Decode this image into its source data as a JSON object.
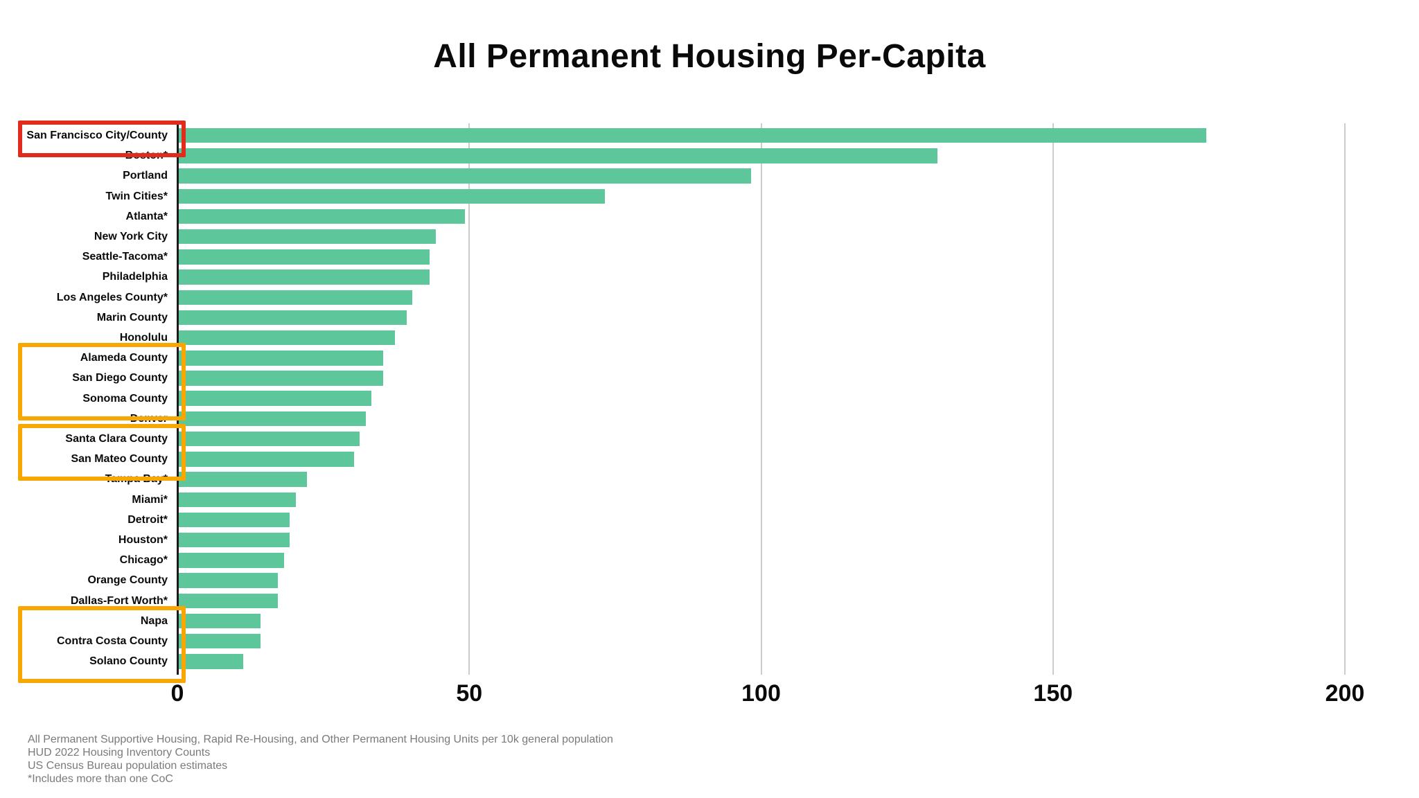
{
  "title": "All Permanent Housing Per-Capita",
  "chart_data": {
    "type": "bar",
    "orientation": "horizontal",
    "title": "All Permanent Housing Per-Capita",
    "xlabel": "",
    "ylabel": "",
    "xlim": [
      0,
      200
    ],
    "x_ticks": [
      0,
      50,
      100,
      150,
      200
    ],
    "grid": true,
    "bar_color": "#5EC69B",
    "gridline_color": "#CCCCCC",
    "axis_color": "#1A1A1A",
    "categories": [
      "San Francisco City/County",
      "Boston*",
      "Portland",
      "Twin Cities*",
      "Atlanta*",
      "New York City",
      "Seattle-Tacoma*",
      "Philadelphia",
      "Los Angeles County*",
      "Marin County",
      "Honolulu",
      "Alameda County",
      "San Diego County",
      "Sonoma County",
      "Denver",
      "Santa Clara County",
      "San Mateo County",
      "Tampa Bay*",
      "Miami*",
      "Detroit*",
      "Houston*",
      "Chicago*",
      "Orange County",
      "Dallas-Fort Worth*",
      "Napa",
      "Contra Costa County",
      "Solano County"
    ],
    "values": [
      176,
      130,
      98,
      73,
      49,
      44,
      43,
      43,
      40,
      39,
      37,
      35,
      35,
      33,
      32,
      31,
      30,
      22,
      20,
      19,
      19,
      18,
      17,
      17,
      14,
      14,
      11
    ],
    "highlights": [
      {
        "name": "red-box-san-francisco",
        "rows": [
          0,
          0
        ],
        "color": "#E02B1D"
      },
      {
        "name": "orange-box-alameda-sandiego-sonoma",
        "rows": [
          11,
          13
        ],
        "color": "#F7A700"
      },
      {
        "name": "orange-box-santaclara-sanmateo",
        "rows": [
          15,
          16
        ],
        "color": "#F7A700"
      },
      {
        "name": "orange-box-napa-contracosta-solano",
        "rows": [
          24,
          26
        ],
        "color": "#F7A700"
      }
    ]
  },
  "footnotes": [
    "All Permanent Supportive Housing, Rapid Re-Housing, and Other Permanent Housing Units per 10k general population",
    "HUD 2022 Housing Inventory Counts",
    "US Census Bureau population estimates",
    "*Includes more than one CoC"
  ]
}
